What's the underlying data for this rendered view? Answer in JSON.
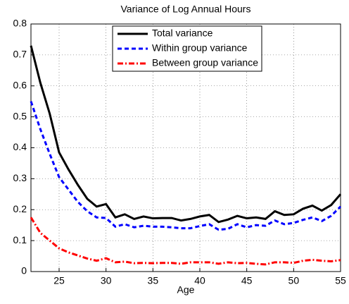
{
  "chart_data": {
    "type": "line",
    "title": "Variance of Log Annual Hours",
    "x_label": "Age",
    "x": [
      22,
      23,
      24,
      25,
      26,
      27,
      28,
      29,
      30,
      31,
      32,
      33,
      34,
      35,
      36,
      37,
      38,
      39,
      40,
      41,
      42,
      43,
      44,
      45,
      46,
      47,
      48,
      49,
      50,
      51,
      52,
      53,
      54,
      55
    ],
    "series": [
      {
        "name": "Total variance",
        "color": "#000000",
        "style": "solid",
        "values": [
          0.73,
          0.61,
          0.51,
          0.385,
          0.33,
          0.28,
          0.235,
          0.21,
          0.218,
          0.175,
          0.185,
          0.17,
          0.178,
          0.172,
          0.173,
          0.173,
          0.165,
          0.17,
          0.178,
          0.183,
          0.16,
          0.168,
          0.18,
          0.172,
          0.175,
          0.17,
          0.195,
          0.183,
          0.185,
          0.203,
          0.213,
          0.197,
          0.215,
          0.25
        ]
      },
      {
        "name": "Within group variance",
        "color": "#0000ff",
        "style": "dashed",
        "values": [
          0.55,
          0.46,
          0.38,
          0.305,
          0.265,
          0.225,
          0.195,
          0.175,
          0.173,
          0.145,
          0.153,
          0.143,
          0.148,
          0.145,
          0.145,
          0.143,
          0.14,
          0.14,
          0.147,
          0.153,
          0.135,
          0.138,
          0.153,
          0.143,
          0.15,
          0.148,
          0.165,
          0.153,
          0.157,
          0.167,
          0.175,
          0.163,
          0.18,
          0.21
        ]
      },
      {
        "name": "Between group variance",
        "color": "#ff0000",
        "style": "dashdot",
        "values": [
          0.175,
          0.125,
          0.1,
          0.075,
          0.062,
          0.052,
          0.042,
          0.035,
          0.043,
          0.03,
          0.032,
          0.027,
          0.028,
          0.027,
          0.028,
          0.028,
          0.025,
          0.03,
          0.03,
          0.03,
          0.025,
          0.03,
          0.027,
          0.028,
          0.025,
          0.023,
          0.03,
          0.03,
          0.028,
          0.035,
          0.038,
          0.035,
          0.033,
          0.037
        ]
      }
    ],
    "xlim": [
      22,
      55
    ],
    "xticks": [
      25,
      30,
      35,
      40,
      45,
      50,
      55
    ],
    "ylim": [
      0,
      0.8
    ],
    "yticks": [
      0,
      0.1,
      0.2,
      0.3,
      0.4,
      0.5,
      0.6,
      0.7,
      0.8
    ],
    "grid": true,
    "legend": "top"
  }
}
